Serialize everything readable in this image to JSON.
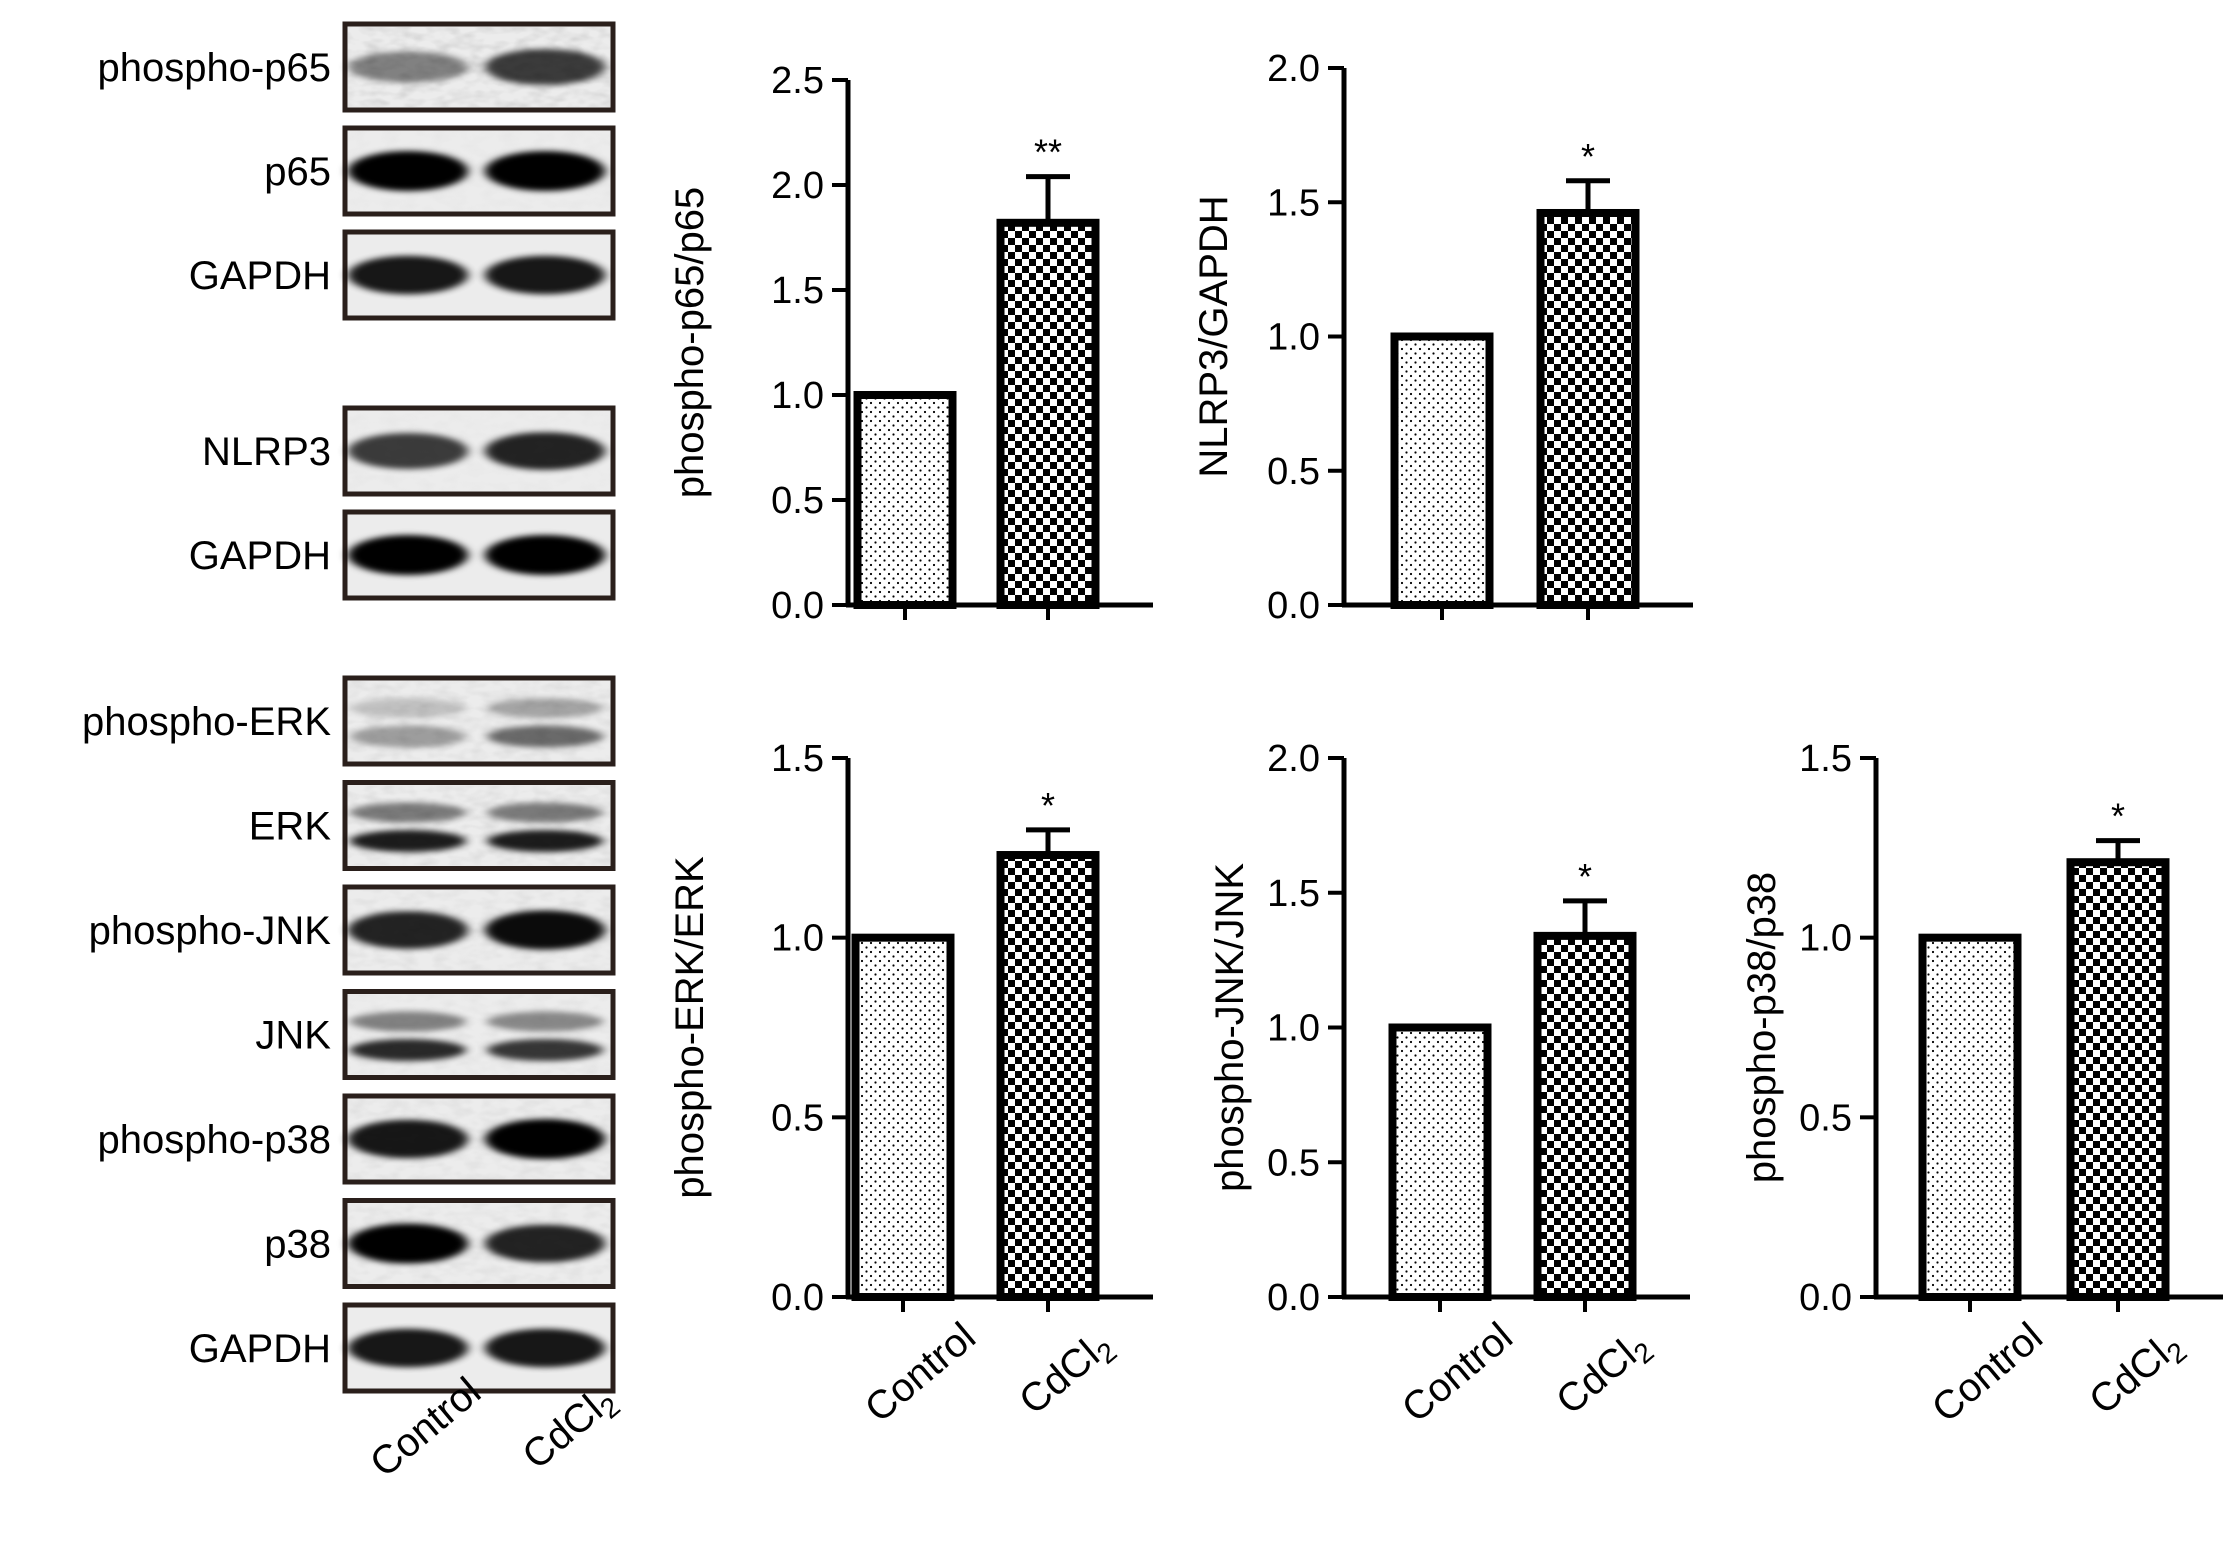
{
  "blots": {
    "groups": [
      {
        "rows": [
          {
            "label": "phospho-p65",
            "bands": [
              0.45,
              0.75
            ],
            "noise": 0.6,
            "double": false
          },
          {
            "label": "p65",
            "bands": [
              1.0,
              1.0
            ],
            "noise": 0.1,
            "double": false
          },
          {
            "label": "GAPDH",
            "bands": [
              0.9,
              0.9
            ],
            "noise": 0.05,
            "double": false
          }
        ]
      },
      {
        "rows": [
          {
            "label": "NLRP3",
            "bands": [
              0.75,
              0.85
            ],
            "noise": 0.1,
            "double": false
          },
          {
            "label": "GAPDH",
            "bands": [
              1.0,
              1.0
            ],
            "noise": 0.05,
            "double": false
          }
        ]
      },
      {
        "rows": [
          {
            "label": "phospho-ERK",
            "bands": [
              0.3,
              0.5
            ],
            "noise": 0.35,
            "double": true
          },
          {
            "label": "ERK",
            "bands": [
              0.8,
              0.8
            ],
            "noise": 0.4,
            "double": true
          },
          {
            "label": "phospho-JNK",
            "bands": [
              0.85,
              0.95
            ],
            "noise": 0.3,
            "double": false
          },
          {
            "label": "JNK",
            "bands": [
              0.75,
              0.7
            ],
            "noise": 0.2,
            "double": true
          },
          {
            "label": "phospho-p38",
            "bands": [
              0.9,
              1.0
            ],
            "noise": 0.3,
            "double": false
          },
          {
            "label": "p38",
            "bands": [
              1.0,
              0.85
            ],
            "noise": 0.3,
            "double": false
          },
          {
            "label": "GAPDH",
            "bands": [
              0.9,
              0.9
            ],
            "noise": 0.05,
            "double": false
          }
        ]
      }
    ],
    "lanes": [
      "Control",
      "CdCl2"
    ]
  },
  "chart_data": [
    {
      "type": "bar",
      "categories": [
        "Control",
        "CdCl2"
      ],
      "values": [
        1.0,
        1.82
      ],
      "errors": [
        0,
        0.22
      ],
      "significance": [
        "",
        "**"
      ],
      "ylabel": "phospho-p65/p65",
      "ylim": [
        0,
        2.5
      ],
      "yticks": [
        "0.0",
        "0.5",
        "1.0",
        "1.5",
        "2.0",
        "2.5"
      ],
      "show_category_labels": false
    },
    {
      "type": "bar",
      "categories": [
        "Control",
        "CdCl2"
      ],
      "values": [
        1.0,
        1.46
      ],
      "errors": [
        0,
        0.12
      ],
      "significance": [
        "",
        "*"
      ],
      "ylabel": "NLRP3/GAPDH",
      "ylim": [
        0,
        2.0
      ],
      "yticks": [
        "0.0",
        "0.5",
        "1.0",
        "1.5",
        "2.0"
      ],
      "show_category_labels": false
    },
    {
      "type": "bar",
      "categories": [
        "Control",
        "CdCl2"
      ],
      "values": [
        1.0,
        1.23
      ],
      "errors": [
        0,
        0.07
      ],
      "significance": [
        "",
        "*"
      ],
      "ylabel": "phospho-ERK/ERK",
      "ylim": [
        0,
        1.5
      ],
      "yticks": [
        "0.0",
        "0.5",
        "1.0",
        "1.5"
      ],
      "show_category_labels": true
    },
    {
      "type": "bar",
      "categories": [
        "Control",
        "CdCl2"
      ],
      "values": [
        1.0,
        1.34
      ],
      "errors": [
        0,
        0.13
      ],
      "significance": [
        "",
        "*"
      ],
      "ylabel": "phospho-JNK/JNK",
      "ylim": [
        0,
        2.0
      ],
      "yticks": [
        "0.0",
        "0.5",
        "1.0",
        "1.5",
        "2.0"
      ],
      "show_category_labels": true
    },
    {
      "type": "bar",
      "categories": [
        "Control",
        "CdCl2"
      ],
      "values": [
        1.0,
        1.21
      ],
      "errors": [
        0,
        0.06
      ],
      "significance": [
        "",
        "*"
      ],
      "ylabel": "phospho-p38/p38",
      "ylim": [
        0,
        1.5
      ],
      "yticks": [
        "0.0",
        "0.5",
        "1.0",
        "1.5"
      ],
      "show_category_labels": true
    }
  ]
}
